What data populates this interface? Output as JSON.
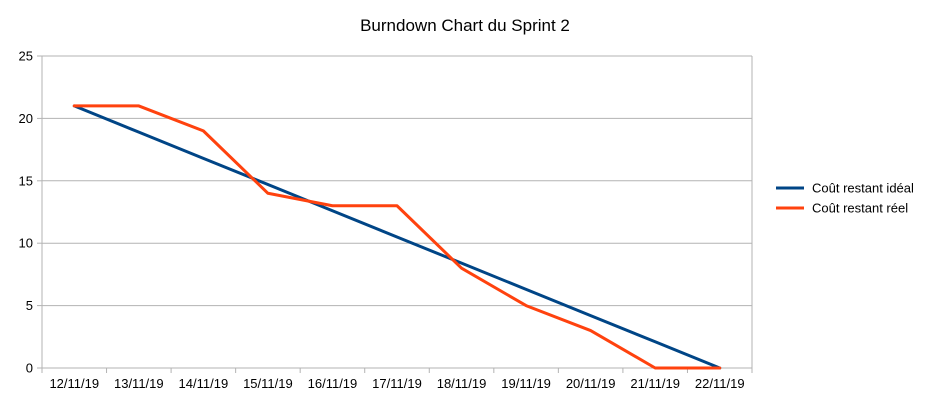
{
  "chart_data": {
    "type": "line",
    "title": "Burndown Chart du Sprint 2",
    "xlabel": "",
    "ylabel": "",
    "categories": [
      "12/11/19",
      "13/11/19",
      "14/11/19",
      "15/11/19",
      "16/11/19",
      "17/11/19",
      "18/11/19",
      "19/11/19",
      "20/11/19",
      "21/11/19",
      "22/11/19"
    ],
    "ylim": [
      0,
      25
    ],
    "yticks": [
      0,
      5,
      10,
      15,
      20,
      25
    ],
    "grid": true,
    "legend_position": "right",
    "series": [
      {
        "name": "Coût restant idéal",
        "color": "#004586",
        "values": [
          21,
          18.9,
          16.8,
          14.7,
          12.6,
          10.5,
          8.4,
          6.3,
          4.2,
          2.1,
          0
        ]
      },
      {
        "name": "Coût restant réel",
        "color": "#ff420e",
        "values": [
          21,
          21,
          19,
          14,
          13,
          13,
          8,
          5,
          3,
          0,
          0
        ]
      }
    ]
  }
}
